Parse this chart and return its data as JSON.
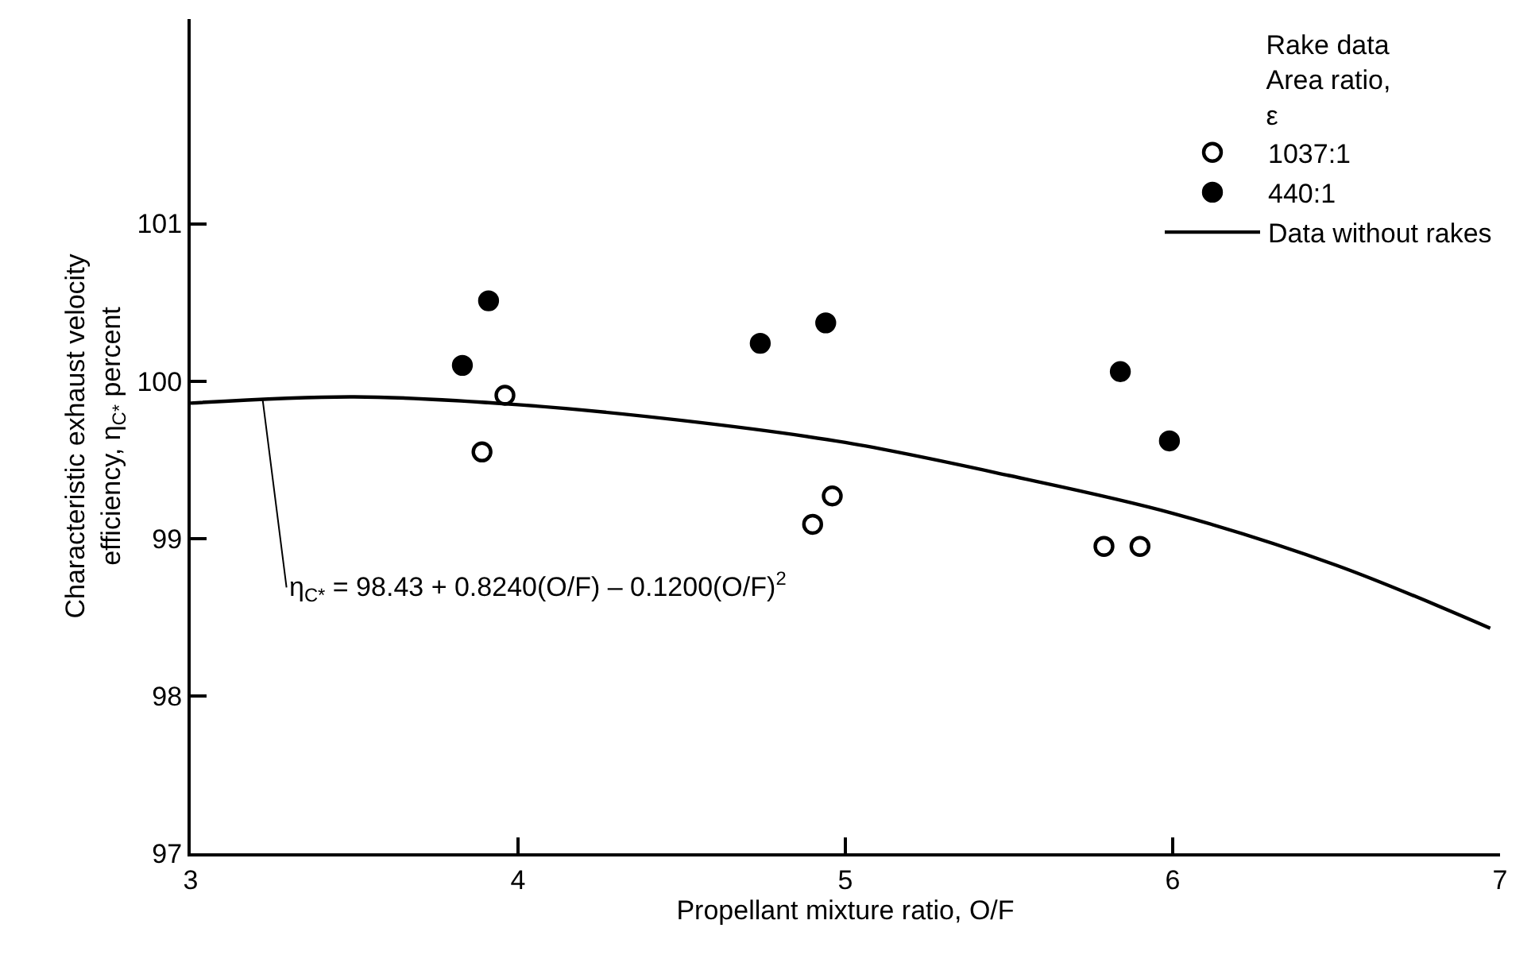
{
  "chart_data": {
    "type": "scatter",
    "xlabel": "Propellant mixture ratio, O/F",
    "ylabel": "Characteristic exhaust velocity efficiency, η$_{C*}$ percent",
    "legend_title": "Rake data\nArea ratio,\nε",
    "xlim": [
      3,
      7
    ],
    "xticks": [
      3,
      4,
      5,
      6,
      7
    ],
    "ylim": [
      97,
      102.3
    ],
    "yticks": [
      97,
      98,
      99,
      100,
      101
    ],
    "legend": "top right",
    "series": [
      {
        "name": "1037:1",
        "color": "#000000",
        "marker": "circle-open",
        "x": [
          3.89,
          3.96,
          4.9,
          4.96,
          5.79,
          5.9
        ],
        "values": [
          99.55,
          99.91,
          99.09,
          99.27,
          98.95,
          98.95
        ]
      },
      {
        "name": "440:1",
        "color": "#000000",
        "marker": "circle",
        "x": [
          3.83,
          3.91,
          4.74,
          4.94,
          5.84,
          5.99
        ],
        "values": [
          100.1,
          100.51,
          100.24,
          100.37,
          100.06,
          99.62
        ]
      },
      {
        "name": "Data without rakes",
        "type": "line",
        "color": "#000000",
        "marker": "none",
        "line_style": "solid",
        "x": [
          3,
          3.5,
          4,
          4.5,
          5,
          5.5,
          6,
          6.5,
          6.97
        ],
        "values": [
          99.86,
          99.9,
          99.85,
          99.75,
          99.61,
          99.4,
          99.16,
          98.83,
          98.43
        ]
      }
    ],
    "annotations": [
      {
        "text": "η$_{C*}$ = 98.43 + 0.8240(O/F) – 0.1200(O/F)$^{2}$",
        "x": 3.22,
        "y": 99.88
      }
    ]
  }
}
